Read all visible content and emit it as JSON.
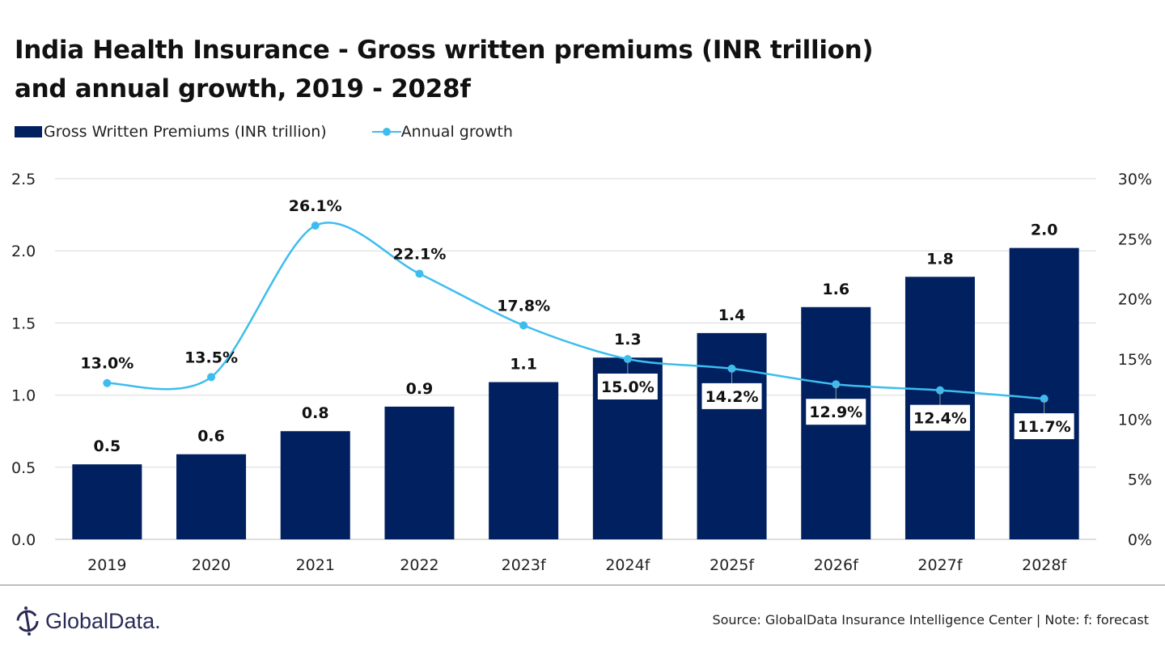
{
  "chart_data": {
    "type": "bar",
    "title_line1": "India Health Insurance - Gross written premiums (INR trillion)",
    "title_line2": "and annual growth, 2019 - 2028f",
    "categories": [
      "2019",
      "2020",
      "2021",
      "2022",
      "2023f",
      "2024f",
      "2025f",
      "2026f",
      "2027f",
      "2028f"
    ],
    "series": [
      {
        "name": "Gross Written Premiums (INR trillion)",
        "type": "bar",
        "axis": "left",
        "color": "#002060",
        "values": [
          0.52,
          0.59,
          0.75,
          0.92,
          1.09,
          1.26,
          1.43,
          1.61,
          1.82,
          2.02
        ],
        "labels": [
          "0.5",
          "0.6",
          "0.8",
          "0.9",
          "1.1",
          "1.3",
          "1.4",
          "1.6",
          "1.8",
          "2.0"
        ]
      },
      {
        "name": "Annual growth",
        "type": "line",
        "axis": "right",
        "color": "#3DBDEE",
        "values": [
          13.0,
          13.5,
          26.1,
          22.1,
          17.8,
          15.0,
          14.2,
          12.9,
          12.4,
          11.7
        ],
        "labels": [
          "13.0%",
          "13.5%",
          "26.1%",
          "22.1%",
          "17.8%",
          "15.0%",
          "14.2%",
          "12.9%",
          "12.4%",
          "11.7%"
        ]
      }
    ],
    "left_axis": {
      "ylim": [
        0,
        2.5
      ],
      "ticks": [
        "0.0",
        "0.5",
        "1.0",
        "1.5",
        "2.0",
        "2.5"
      ]
    },
    "right_axis": {
      "ylim": [
        0,
        30
      ],
      "ticks": [
        "0%",
        "5%",
        "10%",
        "15%",
        "20%",
        "25%",
        "30%"
      ]
    },
    "grid": true,
    "legend_placement": "top-left"
  },
  "footer": {
    "logo_text": "GlobalData.",
    "source": "Source: GlobalData Insurance Intelligence Center | Note: f: forecast"
  }
}
